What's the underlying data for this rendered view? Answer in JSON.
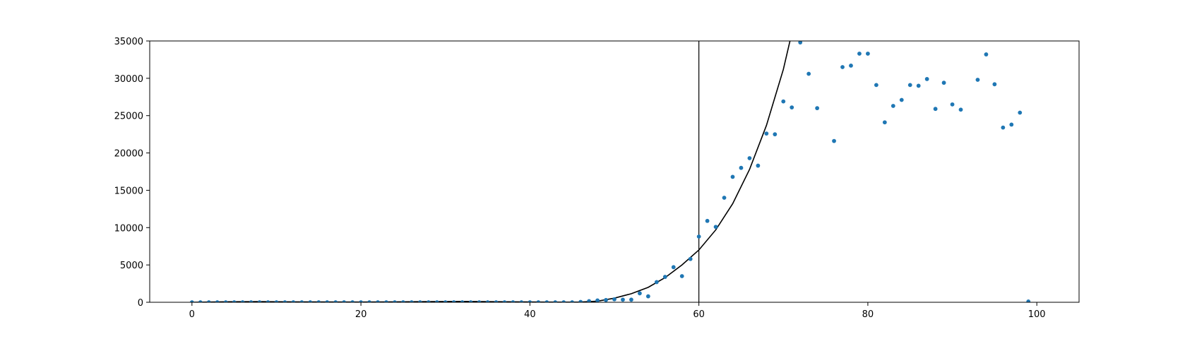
{
  "chart_data": {
    "type": "scatter",
    "title": "",
    "xlabel": "",
    "ylabel": "",
    "xlim": [
      -5,
      105
    ],
    "ylim": [
      0,
      35000
    ],
    "grid": false,
    "legend": "none",
    "x_ticks": [
      0,
      20,
      40,
      60,
      80,
      100
    ],
    "y_ticks": [
      0,
      5000,
      10000,
      15000,
      20000,
      25000,
      30000,
      35000
    ],
    "x_tick_labels": [
      "0",
      "20",
      "40",
      "60",
      "80",
      "100"
    ],
    "y_tick_labels": [
      "0",
      "5000",
      "10000",
      "15000",
      "20000",
      "25000",
      "30000",
      "35000"
    ],
    "point_color": "#1f77b4",
    "curve_color": "#000000",
    "vline": {
      "x": 60,
      "color": "#000000"
    },
    "series": [
      {
        "kind": "scatter",
        "x": [
          0,
          1,
          2,
          3,
          4,
          5,
          6,
          7,
          8,
          9,
          10,
          11,
          12,
          13,
          14,
          15,
          16,
          17,
          18,
          19,
          20,
          21,
          22,
          23,
          24,
          25,
          26,
          27,
          28,
          29,
          30,
          31,
          32,
          33,
          34,
          35,
          36,
          37,
          38,
          39,
          40,
          41,
          42,
          43,
          44,
          45,
          46,
          47,
          48,
          49,
          50,
          51,
          52,
          53,
          54,
          55,
          56,
          57,
          58,
          59,
          60,
          61,
          62,
          63,
          64,
          65,
          66,
          67,
          68,
          69,
          70,
          71,
          72,
          73,
          74,
          76,
          77,
          78,
          79,
          80,
          81,
          82,
          83,
          84,
          85,
          86,
          87,
          88,
          89,
          90,
          91,
          93,
          94,
          95,
          96,
          97,
          98,
          99
        ],
        "y": [
          0,
          0,
          0,
          0,
          0,
          0,
          0,
          0,
          0,
          0,
          0,
          0,
          0,
          0,
          0,
          0,
          0,
          0,
          0,
          0,
          0,
          0,
          0,
          0,
          0,
          0,
          0,
          0,
          0,
          0,
          0,
          0,
          0,
          0,
          0,
          0,
          0,
          0,
          0,
          0,
          0,
          0,
          0,
          0,
          0,
          0,
          50,
          150,
          250,
          300,
          400,
          350,
          350,
          1200,
          800,
          2700,
          3400,
          4700,
          3500,
          5800,
          8800,
          10900,
          10100,
          14000,
          16800,
          18000,
          19300,
          18300,
          22600,
          22500,
          26900,
          26100,
          34800,
          30600,
          26000,
          21600,
          31500,
          31700,
          33300,
          33300,
          29100,
          24100,
          26300,
          27100,
          29100,
          29000,
          29900,
          25900,
          29400,
          26500,
          25800,
          29800,
          33200,
          29200,
          23400,
          23800,
          25400,
          100
        ]
      },
      {
        "kind": "line",
        "x": [
          0,
          4,
          8,
          12,
          16,
          20,
          24,
          28,
          32,
          36,
          40,
          44,
          46,
          48,
          50,
          52,
          54,
          56,
          58,
          60,
          62,
          64,
          66,
          68,
          70,
          70.7,
          71
        ],
        "y": [
          0,
          70,
          90,
          60,
          40,
          30,
          60,
          90,
          110,
          80,
          40,
          20,
          30,
          150,
          550,
          1150,
          2000,
          3300,
          5000,
          7000,
          9700,
          13200,
          17800,
          23700,
          31200,
          34600,
          36000
        ]
      }
    ]
  }
}
